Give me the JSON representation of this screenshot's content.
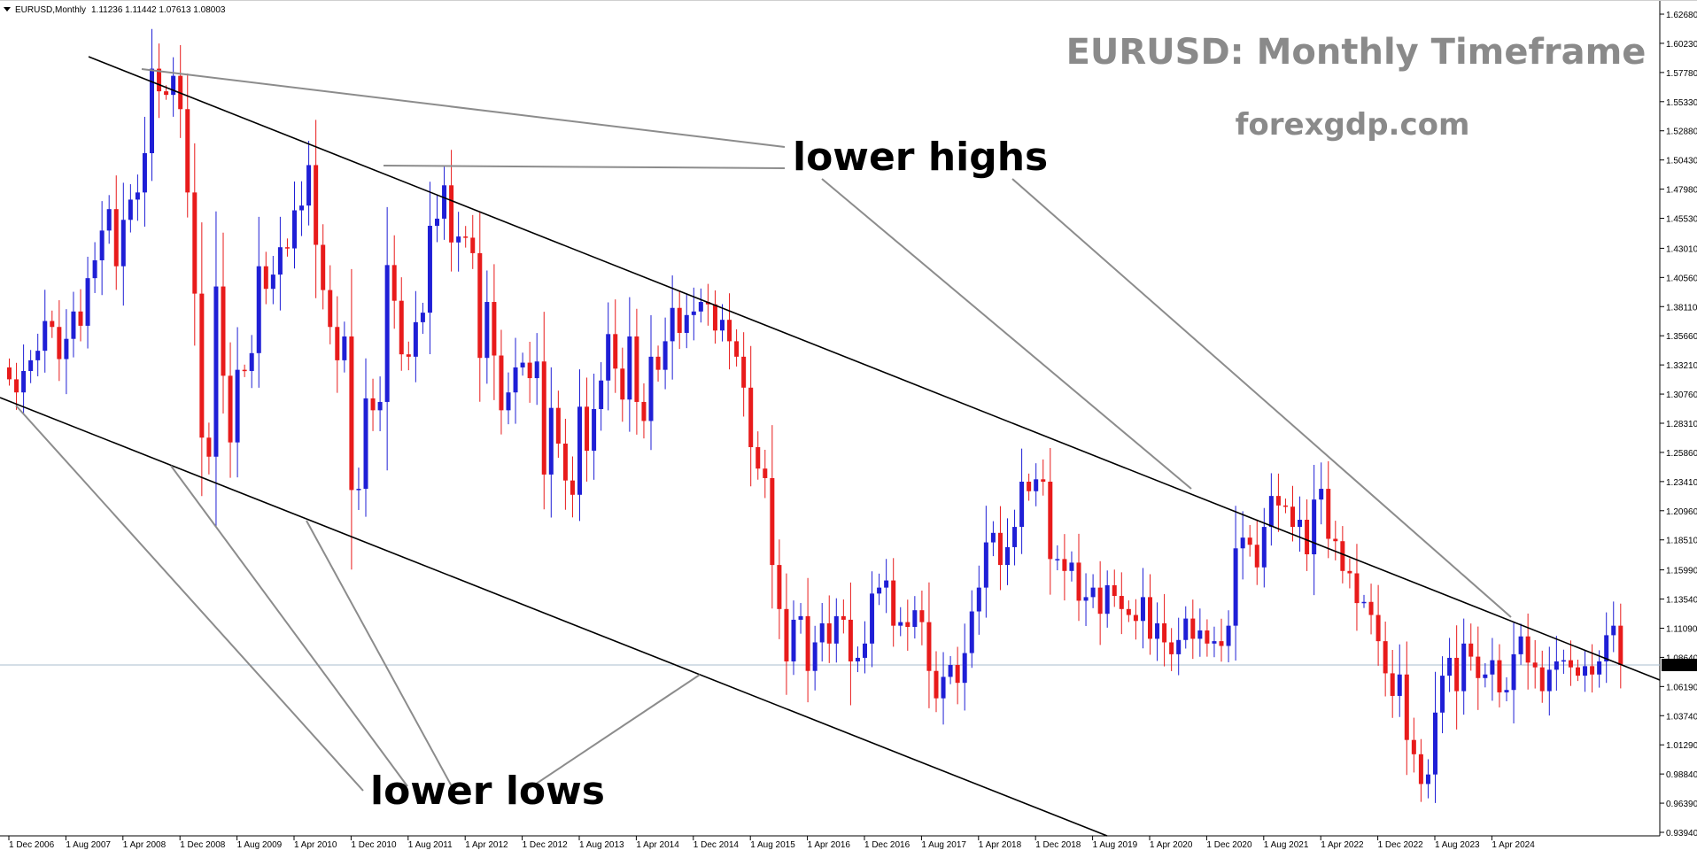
{
  "colors": {
    "bull": "#1f1fd6",
    "bear": "#e81b1b",
    "channel": "#000000",
    "pointer": "#8c8c8c",
    "current_price_line": "#a9bccf",
    "title": "#8a8a8a"
  },
  "header": {
    "symbol": "EURUSD,Monthly",
    "ohlc": "1.11236 1.11442 1.07613 1.08003"
  },
  "annotations": {
    "title": "EURUSD: Monthly Timeframe",
    "site": "forexgdp.com",
    "lower_highs": "lower highs",
    "lower_lows": "lower lows"
  },
  "chart_data": {
    "type": "candlestick",
    "title": "EURUSD: Monthly Timeframe",
    "timeframe": "Monthly",
    "ylim": [
      0.9394,
      1.6268
    ],
    "x_tick_labels": [
      "1 Dec 2006",
      "1 Aug 2007",
      "1 Apr 2008",
      "1 Dec 2008",
      "1 Aug 2009",
      "1 Apr 2010",
      "1 Dec 2010",
      "1 Aug 2011",
      "1 Apr 2012",
      "1 Dec 2012",
      "1 Aug 2013",
      "1 Apr 2014",
      "1 Dec 2014",
      "1 Aug 2015",
      "1 Apr 2016",
      "1 Dec 2016",
      "1 Aug 2017",
      "1 Apr 2018",
      "1 Dec 2018",
      "1 Aug 2019",
      "1 Apr 2020",
      "1 Dec 2020",
      "1 Aug 2021",
      "1 Apr 2022",
      "1 Dec 2022",
      "1 Aug 2023",
      "1 Apr 2024"
    ],
    "y_tick_labels": [
      "1.62680",
      "1.60230",
      "1.57780",
      "1.55330",
      "1.52880",
      "1.50430",
      "1.47980",
      "1.45530",
      "1.43010",
      "1.40560",
      "1.38110",
      "1.35660",
      "1.33210",
      "1.30760",
      "1.28310",
      "1.25860",
      "1.23410",
      "1.20960",
      "1.18510",
      "1.15990",
      "1.13540",
      "1.11090",
      "1.08640",
      "1.06190",
      "1.03740",
      "1.01290",
      "0.98840",
      "0.96390",
      "0.93940"
    ],
    "current_price": 1.08003,
    "current_price_label": "1.08003",
    "closes": [
      1.32,
      1.309,
      1.327,
      1.336,
      1.344,
      1.369,
      1.364,
      1.337,
      1.354,
      1.377,
      1.365,
      1.405,
      1.42,
      1.445,
      1.463,
      1.415,
      1.454,
      1.471,
      1.477,
      1.51,
      1.581,
      1.562,
      1.559,
      1.575,
      1.547,
      1.477,
      1.392,
      1.271,
      1.255,
      1.398,
      1.323,
      1.267,
      1.328,
      1.327,
      1.342,
      1.415,
      1.396,
      1.408,
      1.431,
      1.43,
      1.462,
      1.466,
      1.5,
      1.433,
      1.395,
      1.364,
      1.336,
      1.356,
      1.227,
      1.228,
      1.304,
      1.294,
      1.301,
      1.416,
      1.386,
      1.341,
      1.339,
      1.368,
      1.376,
      1.449,
      1.455,
      1.483,
      1.435,
      1.44,
      1.439,
      1.426,
      1.338,
      1.385,
      1.34,
      1.294,
      1.309,
      1.33,
      1.334,
      1.321,
      1.335,
      1.24,
      1.296,
      1.266,
      1.235,
      1.223,
      1.297,
      1.26,
      1.295,
      1.319,
      1.358,
      1.329,
      1.303,
      1.356,
      1.301,
      1.285,
      1.339,
      1.328,
      1.352,
      1.38,
      1.359,
      1.374,
      1.377,
      1.385,
      1.383,
      1.361,
      1.37,
      1.352,
      1.339,
      1.313,
      1.263,
      1.245,
      1.237,
      1.164,
      1.127,
      1.083,
      1.118,
      1.121,
      1.075,
      1.099,
      1.115,
      1.098,
      1.121,
      1.118,
      1.083,
      1.086,
      1.098,
      1.14,
      1.145,
      1.151,
      1.113,
      1.116,
      1.112,
      1.126,
      1.116,
      1.075,
      1.052,
      1.07,
      1.08,
      1.065,
      1.09,
      1.125,
      1.145,
      1.183,
      1.191,
      1.164,
      1.179,
      1.196,
      1.234,
      1.226,
      1.236,
      1.234,
      1.169,
      1.169,
      1.159,
      1.166,
      1.134,
      1.137,
      1.145,
      1.123,
      1.147,
      1.138,
      1.127,
      1.122,
      1.117,
      1.137,
      1.102,
      1.115,
      1.099,
      1.089,
      1.101,
      1.119,
      1.102,
      1.109,
      1.098,
      1.1,
      1.096,
      1.113,
      1.178,
      1.187,
      1.181,
      1.162,
      1.196,
      1.222,
      1.214,
      1.213,
      1.196,
      1.202,
      1.173,
      1.219,
      1.228,
      1.186,
      1.184,
      1.159,
      1.157,
      1.132,
      1.133,
      1.122,
      1.1,
      1.073,
      1.054,
      1.072,
      1.017,
      1.005,
      0.98,
      0.988,
      1.04,
      1.071,
      1.086,
      1.058,
      1.098,
      1.087,
      1.069,
      1.072,
      1.084,
      1.057,
      1.059,
      1.089,
      1.104,
      1.082,
      1.078,
      1.058,
      1.076,
      1.083,
      1.084,
      1.078,
      1.071,
      1.079,
      1.072,
      1.083,
      1.105,
      1.113,
      1.08
    ]
  }
}
